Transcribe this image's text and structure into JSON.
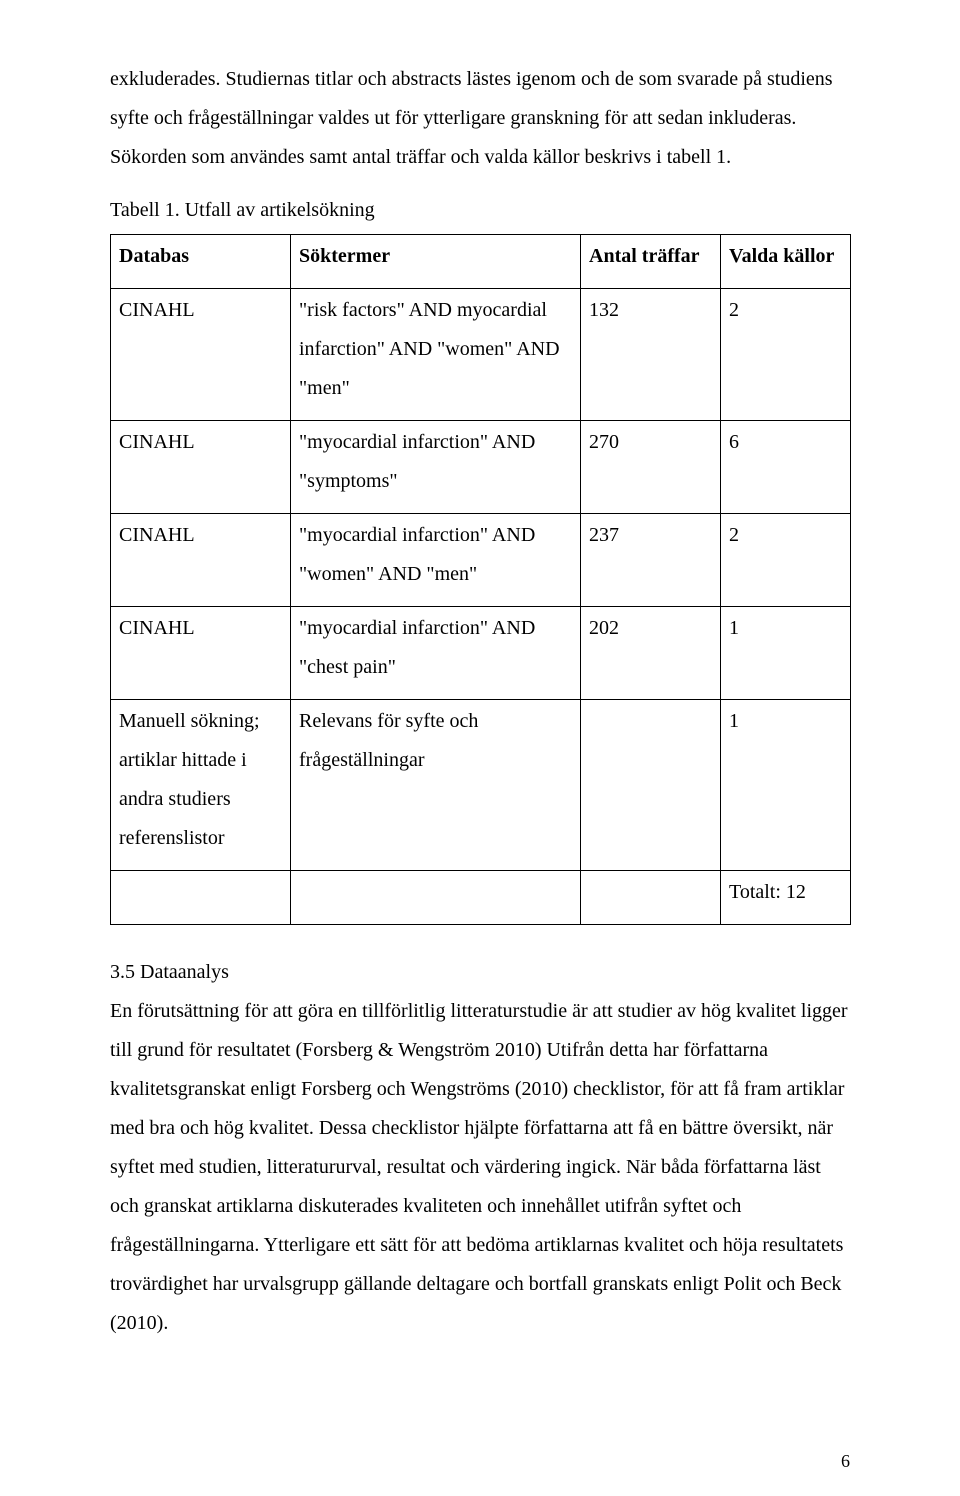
{
  "paragraphs": {
    "p1": "exkluderades. Studiernas titlar och abstracts lästes igenom och de som svarade på studiens syfte och frågeställningar valdes ut för ytterligare granskning för att sedan inkluderas. Sökorden som användes samt antal träffar och valda källor beskrivs i tabell 1.",
    "caption": "Tabell 1. Utfall av artikelsökning",
    "p2": "En förutsättning för att göra en tillförlitlig litteraturstudie är att studier av hög kvalitet ligger till grund för resultatet (Forsberg & Wengström 2010) Utifrån detta har författarna kvalitetsgranskat enligt Forsberg och Wengströms (2010) checklistor, för att få fram artiklar med bra och hög kvalitet. Dessa checklistor hjälpte författarna att få en bättre översikt, när syftet med studien, litteratururval, resultat och värdering ingick. När båda författarna läst och granskat artiklarna diskuterades kvaliteten och innehållet utifrån syftet och frågeställningarna. Ytterligare ett sätt för att bedöma artiklarnas kvalitet och höja resultatets trovärdighet har urvalsgrupp gällande deltagare och bortfall granskats enligt Polit och Beck (2010)."
  },
  "section_heading": "3.5 Dataanalys",
  "table": {
    "headers": [
      "Databas",
      "Söktermer",
      "Antal träffar",
      "Valda källor"
    ],
    "rows": [
      {
        "db": "CINAHL",
        "terms": "\"risk factors\" AND myocardial infarction\" AND \"women\" AND \"men\"",
        "hits": "132",
        "chosen": "2"
      },
      {
        "db": "CINAHL",
        "terms": "\"myocardial infarction\" AND \"symptoms\"",
        "hits": "270",
        "chosen": "6"
      },
      {
        "db": "CINAHL",
        "terms": "\"myocardial infarction\" AND \"women\" AND \"men\"",
        "hits": "237",
        "chosen": "2"
      },
      {
        "db": "CINAHL",
        "terms": "\"myocardial infarction\" AND \"chest pain\"",
        "hits": "202",
        "chosen": "1"
      },
      {
        "db": "Manuell sökning; artiklar hittade i andra studiers referenslistor",
        "terms": "Relevans för syfte och frågeställningar",
        "hits": "",
        "chosen": "1"
      },
      {
        "db": "",
        "terms": "",
        "hits": "",
        "chosen": "Totalt: 12"
      }
    ]
  },
  "page_number": "6"
}
